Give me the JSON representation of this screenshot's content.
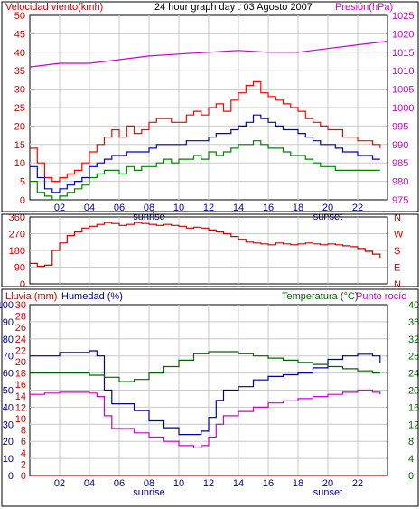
{
  "title": "24 hour graph day : 03 Agosto 2007",
  "colors": {
    "background": "#ffffff",
    "grid": "#c8c8c8",
    "wind_max": "#ff0000",
    "wind_avg": "#0000cc",
    "wind_min": "#008000",
    "pressure": "#cc00cc",
    "direction": "#cc0000",
    "humidity": "#000099",
    "temperature": "#006600",
    "dewpoint": "#cc00cc",
    "rain": "#cc0000"
  },
  "chart_data": [
    {
      "type": "line",
      "name_left": "Velocidad viento(kmh)",
      "name_right": "Presión(hPa)",
      "x_ticks": [
        "02",
        "04",
        "06",
        "08",
        "10",
        "12",
        "14",
        "16",
        "18",
        "20",
        "22"
      ],
      "x_extra_labels": [
        "sunrise",
        "sunset"
      ],
      "y_left_ticks": [
        0,
        5,
        10,
        15,
        20,
        25,
        30,
        35,
        40,
        45,
        50
      ],
      "y_right_ticks": [
        975,
        980,
        985,
        990,
        995,
        1000,
        1005,
        1010,
        1015,
        1020,
        1025
      ],
      "ylim_left": [
        0,
        50
      ],
      "ylim_right": [
        975,
        1025
      ],
      "x_range_hours": [
        0,
        24
      ],
      "series": [
        {
          "name": "wind max",
          "axis": "left",
          "x": [
            0,
            0.5,
            1,
            1.5,
            2,
            2.5,
            3,
            3.5,
            4,
            4.5,
            5,
            5.5,
            6,
            6.5,
            7,
            7.5,
            8,
            8.5,
            9,
            9.5,
            10,
            10.5,
            11,
            11.5,
            12,
            12.5,
            13,
            13.5,
            14,
            14.5,
            15,
            15.5,
            16,
            16.5,
            17,
            17.5,
            18,
            18.5,
            19,
            19.5,
            20,
            20.5,
            21,
            21.5,
            22,
            22.5,
            23,
            23.5
          ],
          "values": [
            14,
            10,
            6,
            5,
            6,
            7,
            8,
            10,
            13,
            15,
            17,
            19,
            17,
            20,
            18,
            19,
            21,
            22,
            22,
            21,
            21,
            23,
            24,
            23,
            25,
            26,
            24,
            27,
            29,
            31,
            32,
            29,
            28,
            27,
            26,
            25,
            24,
            22,
            21,
            20,
            19,
            19,
            17,
            17,
            16,
            16,
            15,
            14
          ]
        },
        {
          "name": "wind avg",
          "axis": "left",
          "x": [
            0,
            0.5,
            1,
            1.5,
            2,
            2.5,
            3,
            3.5,
            4,
            4.5,
            5,
            5.5,
            6,
            6.5,
            7,
            7.5,
            8,
            8.5,
            9,
            9.5,
            10,
            10.5,
            11,
            11.5,
            12,
            12.5,
            13,
            13.5,
            14,
            14.5,
            15,
            15.5,
            16,
            16.5,
            17,
            17.5,
            18,
            18.5,
            19,
            19.5,
            20,
            20.5,
            21,
            21.5,
            22,
            22.5,
            23,
            23.5
          ],
          "values": [
            9,
            6,
            3,
            2,
            3,
            4,
            5,
            6,
            9,
            10,
            11,
            12,
            12,
            13,
            13,
            13,
            14,
            15,
            15,
            15,
            15,
            16,
            16,
            16,
            17,
            18,
            18,
            19,
            20,
            21,
            23,
            22,
            21,
            20,
            19,
            19,
            18,
            17,
            16,
            15,
            15,
            14,
            13,
            13,
            12,
            12,
            11,
            11
          ]
        },
        {
          "name": "wind min",
          "axis": "left",
          "x": [
            0,
            0.5,
            1,
            1.5,
            2,
            2.5,
            3,
            3.5,
            4,
            4.5,
            5,
            5.5,
            6,
            6.5,
            7,
            7.5,
            8,
            8.5,
            9,
            9.5,
            10,
            10.5,
            11,
            11.5,
            12,
            12.5,
            13,
            13.5,
            14,
            14.5,
            15,
            15.5,
            16,
            16.5,
            17,
            17.5,
            18,
            18.5,
            19,
            19.5,
            20,
            20.5,
            21,
            21.5,
            22,
            22.5,
            23,
            23.5
          ],
          "values": [
            5,
            2,
            1,
            0,
            1,
            2,
            3,
            4,
            6,
            7,
            8,
            8,
            7,
            9,
            8,
            9,
            9,
            10,
            11,
            10,
            11,
            11,
            12,
            11,
            13,
            12,
            13,
            14,
            15,
            15,
            16,
            15,
            14,
            14,
            13,
            12,
            12,
            11,
            10,
            9,
            9,
            8,
            8,
            8,
            8,
            8,
            8,
            8
          ]
        },
        {
          "name": "pressure",
          "axis": "right",
          "x": [
            0,
            2,
            4,
            6,
            8,
            10,
            12,
            14,
            16,
            18,
            20,
            22,
            24
          ],
          "values": [
            1011,
            1012,
            1012,
            1013,
            1014,
            1014.5,
            1015,
            1015.5,
            1015,
            1015,
            1016,
            1017,
            1018
          ]
        }
      ]
    },
    {
      "type": "line",
      "y_left_ticks": [
        0,
        90,
        180,
        270,
        360
      ],
      "y_right_labels": [
        "N",
        "W",
        "S",
        "E",
        "N"
      ],
      "ylim": [
        0,
        360
      ],
      "x_range_hours": [
        0,
        24
      ],
      "series": [
        {
          "name": "wind direction",
          "x": [
            0,
            0.5,
            1,
            1.5,
            2,
            2.5,
            3,
            3.5,
            4,
            4.5,
            5,
            5.5,
            6,
            6.5,
            7,
            7.5,
            8,
            8.5,
            9,
            9.5,
            10,
            10.5,
            11,
            11.5,
            12,
            12.5,
            13,
            13.5,
            14,
            14.5,
            15,
            15.5,
            16,
            16.5,
            17,
            17.5,
            18,
            18.5,
            19,
            19.5,
            20,
            20.5,
            21,
            21.5,
            22,
            22.5,
            23,
            23.5
          ],
          "values": [
            110,
            95,
            100,
            180,
            220,
            260,
            280,
            300,
            310,
            320,
            330,
            325,
            315,
            320,
            330,
            325,
            320,
            315,
            320,
            315,
            310,
            300,
            305,
            300,
            290,
            280,
            270,
            255,
            240,
            225,
            220,
            215,
            210,
            220,
            215,
            210,
            215,
            220,
            215,
            210,
            215,
            210,
            205,
            200,
            190,
            175,
            160,
            140
          ]
        }
      ]
    },
    {
      "type": "line",
      "name_left_1": "Lluvia (mm)",
      "name_left_2": "Humedad (%)",
      "name_right_1": "Temperatura (°C)",
      "name_right_2": "Punto rocío",
      "y_rain_ticks": [
        0,
        2,
        4,
        6,
        8,
        10,
        12,
        14,
        16,
        18,
        20,
        22,
        24,
        26,
        28,
        30
      ],
      "y_humidity_ticks": [
        0,
        10,
        20,
        30,
        40,
        50,
        60,
        70,
        80,
        90,
        100
      ],
      "y_temp_ticks": [
        0,
        4,
        8,
        12,
        16,
        20,
        24,
        28,
        32,
        36,
        40
      ],
      "ylim_humidity": [
        0,
        100
      ],
      "ylim_temp": [
        0,
        40
      ],
      "x_range_hours": [
        0,
        24
      ],
      "series": [
        {
          "name": "humidity",
          "axis": "humidity",
          "x": [
            0,
            1,
            2,
            3,
            4,
            4.5,
            5,
            5.5,
            6,
            7,
            8,
            9,
            10,
            11,
            11.5,
            12,
            12.5,
            13,
            14,
            15,
            16,
            17,
            18,
            19,
            20,
            21,
            22,
            23,
            23.5
          ],
          "values": [
            70,
            70,
            72,
            72,
            73,
            70,
            50,
            42,
            42,
            38,
            32,
            28,
            24,
            24,
            26,
            34,
            44,
            50,
            52,
            56,
            58,
            59,
            60,
            63,
            68,
            70,
            71,
            70,
            66
          ]
        },
        {
          "name": "temperature",
          "axis": "temp",
          "x": [
            0,
            1,
            2,
            3,
            4,
            5,
            6,
            7,
            8,
            9,
            10,
            11,
            12,
            13,
            14,
            15,
            16,
            17,
            18,
            19,
            20,
            21,
            22,
            23,
            23.5
          ],
          "values": [
            24,
            24,
            24,
            24,
            23.5,
            23,
            22,
            22.5,
            24,
            25.5,
            27,
            28.5,
            29,
            29,
            28.5,
            28,
            27.5,
            27,
            26.5,
            26,
            25.5,
            25,
            24.5,
            24,
            24
          ]
        },
        {
          "name": "dewpoint",
          "axis": "temp",
          "x": [
            0,
            1,
            2,
            3,
            4,
            4.5,
            5,
            5.5,
            6,
            7,
            8,
            9,
            10,
            11,
            11.5,
            12,
            12.5,
            13,
            14,
            15,
            16,
            17,
            18,
            19,
            20,
            21,
            22,
            23,
            23.5
          ],
          "values": [
            19,
            19.3,
            19.5,
            19.5,
            19.3,
            18.5,
            14,
            11,
            11,
            10,
            9,
            8,
            7,
            6.5,
            7,
            9,
            12,
            14,
            15,
            16,
            17,
            17.5,
            18,
            18.5,
            19,
            19.5,
            20,
            19.5,
            19
          ]
        },
        {
          "name": "rain",
          "axis": "rain",
          "x": [
            0,
            24
          ],
          "values": [
            0,
            0
          ]
        }
      ],
      "x_ticks": [
        "02",
        "04",
        "06",
        "08",
        "10",
        "12",
        "14",
        "16",
        "18",
        "20",
        "22"
      ],
      "x_extra_labels": [
        "sunrise",
        "sunset"
      ]
    }
  ]
}
